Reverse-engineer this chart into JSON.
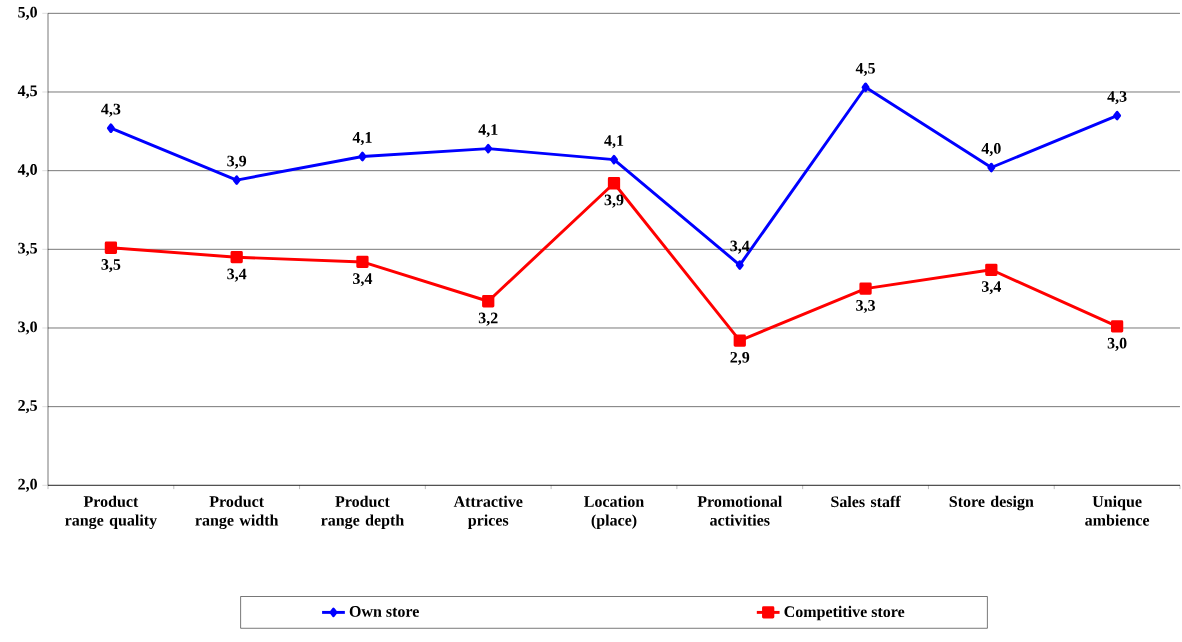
{
  "chart_data": {
    "type": "line",
    "categories": [
      "Product range quality",
      "Product range width",
      "Product range depth",
      "Attractive prices",
      "Location (place)",
      "Promotional activities",
      "Sales staff",
      "Store design",
      "Unique ambience"
    ],
    "series": [
      {
        "name": "Own store",
        "color": "#0000ff",
        "marker": "diamond",
        "values": [
          4.27,
          3.94,
          4.09,
          4.14,
          4.07,
          3.4,
          4.53,
          4.02,
          4.35
        ],
        "value_labels": [
          "4,3",
          "3,9",
          "4,1",
          "4,1",
          "4,1",
          "3,4",
          "4,5",
          "4,0",
          "4,3"
        ]
      },
      {
        "name": "Competitive store",
        "color": "#ff0000",
        "marker": "square",
        "values": [
          3.51,
          3.45,
          3.42,
          3.17,
          3.92,
          2.92,
          3.25,
          3.37,
          3.01
        ],
        "value_labels": [
          "3,5",
          "3,4",
          "3,4",
          "3,2",
          "3,9",
          "2,9",
          "3,3",
          "3,4",
          "3,0"
        ]
      }
    ],
    "ylim": [
      2.0,
      5.0
    ],
    "yticks": [
      {
        "value": 2.0,
        "label": "2,0"
      },
      {
        "value": 2.5,
        "label": "2,5"
      },
      {
        "value": 3.0,
        "label": "3,0"
      },
      {
        "value": 3.5,
        "label": "3,5"
      },
      {
        "value": 4.0,
        "label": "4,0"
      },
      {
        "value": 4.5,
        "label": "4,5"
      },
      {
        "value": 5.0,
        "label": "5,0"
      }
    ],
    "grid": "y",
    "legend": "bottom",
    "line_style": "solid"
  }
}
